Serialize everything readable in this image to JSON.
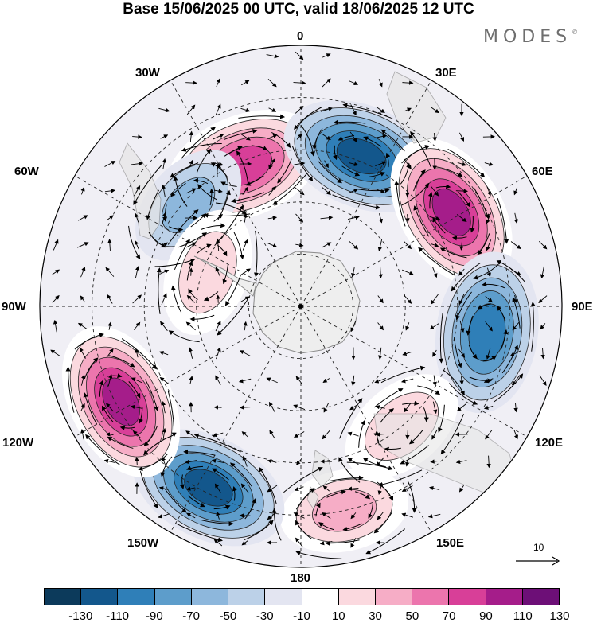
{
  "title": "Base 15/06/2025 00 UTC, valid 18/06/2025 12 UTC",
  "brand": "MODES",
  "brand_mark": "©",
  "longitude_labels": {
    "lon_0": "0",
    "lon_30e": "30E",
    "lon_60e": "60E",
    "lon_90e": "90E",
    "lon_120e": "120E",
    "lon_150e": "150E",
    "lon_180": "180",
    "lon_150w": "150W",
    "lon_120w": "120W",
    "lon_90w": "90W",
    "lon_60w": "60W",
    "lon_30w": "30W"
  },
  "reference_vector_label": "10",
  "colorbar": {
    "colors": [
      "#0c3a5b",
      "#13578c",
      "#2f7fb8",
      "#5d9dcb",
      "#8db7dc",
      "#bcd1e8",
      "#e3e5f1",
      "#ffffff",
      "#fbd9df",
      "#f6adc6",
      "#ec75ad",
      "#d83f98",
      "#a51d8a",
      "#6d0f77"
    ],
    "tick_labels": [
      "-130",
      "-110",
      "-90",
      "-70",
      "-50",
      "-30",
      "-10",
      "10",
      "30",
      "50",
      "70",
      "90",
      "110",
      "130"
    ]
  },
  "field_centers": [
    {
      "id": "high-atlantic",
      "lon_deg": -22,
      "colat_frac": 0.58,
      "value": 95
    },
    {
      "id": "low-southafrica",
      "lon_deg": 22,
      "colat_frac": 0.62,
      "value": -115
    },
    {
      "id": "high-indian",
      "lon_deg": 58,
      "colat_frac": 0.68,
      "value": 125
    },
    {
      "id": "low-indian",
      "lon_deg": 98,
      "colat_frac": 0.72,
      "value": -100
    },
    {
      "id": "high-australia",
      "lon_deg": 140,
      "colat_frac": 0.6,
      "value": 45
    },
    {
      "id": "high-nz",
      "lon_deg": 168,
      "colat_frac": 0.8,
      "value": 60
    },
    {
      "id": "low-pacific",
      "lon_deg": -153,
      "colat_frac": 0.78,
      "value": -120
    },
    {
      "id": "high-pacific",
      "lon_deg": -118,
      "colat_frac": 0.78,
      "value": 115
    },
    {
      "id": "low-southamerica",
      "lon_deg": -48,
      "colat_frac": 0.58,
      "value": -55
    },
    {
      "id": "high-peninsula",
      "lon_deg": -70,
      "colat_frac": 0.38,
      "value": 30
    }
  ]
}
